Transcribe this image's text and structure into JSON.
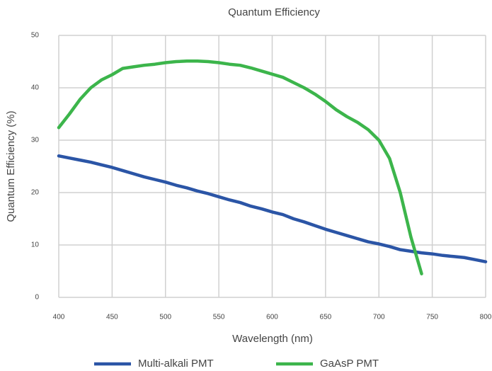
{
  "chart_data": {
    "type": "line",
    "title": "Quantum Efficiency",
    "x_label": "Wavelength (nm)",
    "y_label": "Quantum Efficiency (%)",
    "x": [
      400,
      410,
      420,
      430,
      440,
      450,
      460,
      470,
      480,
      490,
      500,
      510,
      520,
      530,
      540,
      550,
      560,
      570,
      580,
      590,
      600,
      610,
      620,
      630,
      640,
      650,
      660,
      670,
      680,
      690,
      700,
      710,
      720,
      730,
      740,
      750,
      760,
      770,
      780,
      790,
      800
    ],
    "series": [
      {
        "name": "Multi-alkali PMT",
        "color": "#2b55a6",
        "values": [
          27,
          26.6,
          26.2,
          25.8,
          25.3,
          24.8,
          24.2,
          23.6,
          23.0,
          22.5,
          22.0,
          21.4,
          20.9,
          20.3,
          19.8,
          19.2,
          18.6,
          18.1,
          17.4,
          16.9,
          16.3,
          15.8,
          15.0,
          14.4,
          13.7,
          13.0,
          12.4,
          11.8,
          11.2,
          10.6,
          10.2,
          9.7,
          9.1,
          8.8,
          8.5,
          8.3,
          8.0,
          7.8,
          7.6,
          7.2,
          6.8
        ]
      },
      {
        "name": "GaAsP PMT",
        "color": "#3cb54b",
        "values": [
          32.4,
          35,
          37.8,
          40,
          41.5,
          42.5,
          43.7,
          44,
          44.3,
          44.5,
          44.8,
          45.0,
          45.1,
          45.1,
          45.0,
          44.8,
          44.5,
          44.3,
          43.8,
          43.2,
          42.6,
          42,
          41,
          40,
          38.8,
          37.4,
          35.8,
          34.5,
          33.4,
          32,
          30,
          26.5,
          20,
          11.5,
          4.5,
          null,
          null,
          null,
          null,
          null,
          null
        ]
      }
    ],
    "xlim": [
      400,
      800
    ],
    "xticks": [
      400,
      450,
      500,
      550,
      600,
      650,
      700,
      750,
      800
    ],
    "ylim": [
      0,
      50
    ],
    "yticks": [
      0,
      10,
      20,
      30,
      40,
      50
    ],
    "grid": true,
    "legend": "bottom"
  }
}
